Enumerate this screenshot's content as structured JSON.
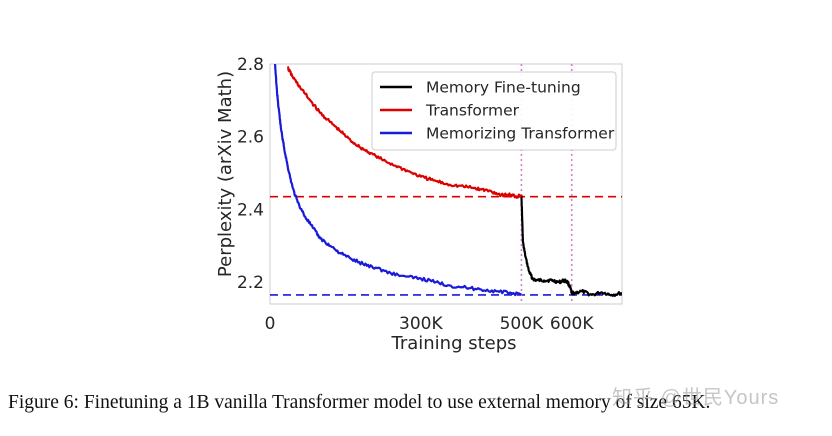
{
  "chart_data": {
    "type": "line",
    "xlabel": "Training steps",
    "ylabel": "Perplexity (arXiv Math)",
    "xlim": [
      0,
      700000
    ],
    "ylim": [
      2.14,
      2.8
    ],
    "grid": false,
    "legend_position": "top-right",
    "x_ticks": [
      {
        "value": 0,
        "label": "0"
      },
      {
        "value": 300000,
        "label": "300K"
      },
      {
        "value": 500000,
        "label": "500K"
      },
      {
        "value": 600000,
        "label": "600K"
      }
    ],
    "y_ticks": [
      {
        "value": 2.2,
        "label": "2.2"
      },
      {
        "value": 2.4,
        "label": "2.4"
      },
      {
        "value": 2.6,
        "label": "2.6"
      },
      {
        "value": 2.8,
        "label": "2.8"
      }
    ],
    "series": [
      {
        "name": "Memory Fine-tuning",
        "color": "#000000",
        "x": [
          500000,
          503000,
          508000,
          515000,
          522000,
          530000,
          545000,
          560000,
          575000,
          585000,
          592000,
          597000,
          600000,
          605000,
          620000,
          640000,
          660000,
          680000,
          700000
        ],
        "y": [
          2.44,
          2.31,
          2.27,
          2.23,
          2.21,
          2.205,
          2.205,
          2.205,
          2.2,
          2.205,
          2.2,
          2.185,
          2.17,
          2.17,
          2.175,
          2.165,
          2.172,
          2.165,
          2.17
        ]
      },
      {
        "name": "Transformer",
        "color": "#dd0000",
        "x": [
          35000,
          45000,
          60000,
          80000,
          100000,
          120000,
          140000,
          160000,
          180000,
          200000,
          225000,
          250000,
          275000,
          300000,
          325000,
          350000,
          375000,
          400000,
          420000,
          440000,
          460000,
          480000,
          490000,
          500000
        ],
        "y": [
          2.79,
          2.765,
          2.735,
          2.7,
          2.665,
          2.64,
          2.615,
          2.59,
          2.57,
          2.555,
          2.535,
          2.52,
          2.505,
          2.49,
          2.48,
          2.47,
          2.465,
          2.46,
          2.455,
          2.45,
          2.44,
          2.44,
          2.435,
          2.44
        ]
      },
      {
        "name": "Memorizing Transformer",
        "color": "#1a1adb",
        "x": [
          10000,
          13000,
          17000,
          22000,
          28000,
          35000,
          45000,
          55000,
          70000,
          85000,
          100000,
          120000,
          140000,
          160000,
          185000,
          210000,
          240000,
          270000,
          300000,
          330000,
          360000,
          390000,
          420000,
          450000,
          480000,
          500000
        ],
        "y": [
          2.8,
          2.74,
          2.68,
          2.62,
          2.57,
          2.52,
          2.46,
          2.42,
          2.38,
          2.35,
          2.32,
          2.3,
          2.28,
          2.265,
          2.25,
          2.24,
          2.225,
          2.215,
          2.21,
          2.2,
          2.19,
          2.185,
          2.18,
          2.175,
          2.17,
          2.165
        ]
      }
    ],
    "reference_lines": [
      {
        "orientation": "horizontal",
        "value": 2.435,
        "color": "#dd0000",
        "style": "dashed"
      },
      {
        "orientation": "horizontal",
        "value": 2.165,
        "color": "#1a1adb",
        "style": "dashed"
      },
      {
        "orientation": "vertical",
        "value": 500000,
        "color": "#d67bd0",
        "style": "dotted"
      },
      {
        "orientation": "vertical",
        "value": 600000,
        "color": "#d67bd0",
        "style": "dotted"
      }
    ]
  },
  "caption": "Figure 6: Finetuning a 1B vanilla Transformer model to use external memory of size 65K.",
  "watermark": "知乎 @世民Yours"
}
